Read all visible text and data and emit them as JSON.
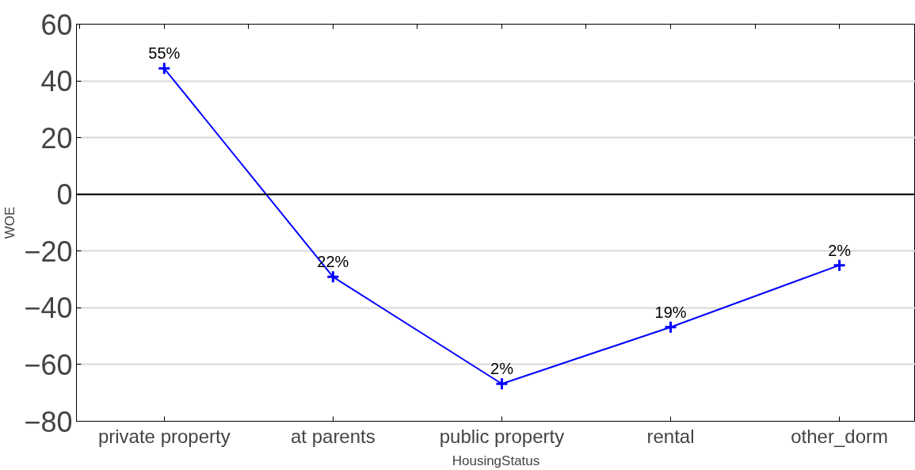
{
  "chart_data": {
    "type": "line",
    "xlabel": "HousingStatus",
    "ylabel": "WOE",
    "categories": [
      "private property",
      "at parents",
      "public property",
      "rental",
      "other_dorm"
    ],
    "series": [
      {
        "color": "#0000ff",
        "values": [
          44.4,
          -29.1,
          -66.8,
          -46.8,
          -25.0
        ]
      }
    ],
    "annotations": [
      {
        "text": "55%",
        "x": "private property",
        "y": 44.4
      },
      {
        "text": "22%",
        "x": "at parents",
        "y": -29.1
      },
      {
        "text": "2%",
        "x": "public property",
        "y": -66.8
      },
      {
        "text": "19%",
        "x": "rental",
        "y": -46.8
      },
      {
        "text": "2%",
        "x": "other_dorm",
        "y": -25.0
      }
    ],
    "ylim": [
      -80,
      60
    ],
    "yticks": [
      -80,
      -60,
      -40,
      -20,
      0,
      20,
      40,
      60
    ],
    "grid": "y",
    "marker": "cross",
    "line_style": "solid",
    "ref_lines": [
      {
        "axis": "y",
        "value": 0,
        "color": "#000000"
      }
    ]
  }
}
